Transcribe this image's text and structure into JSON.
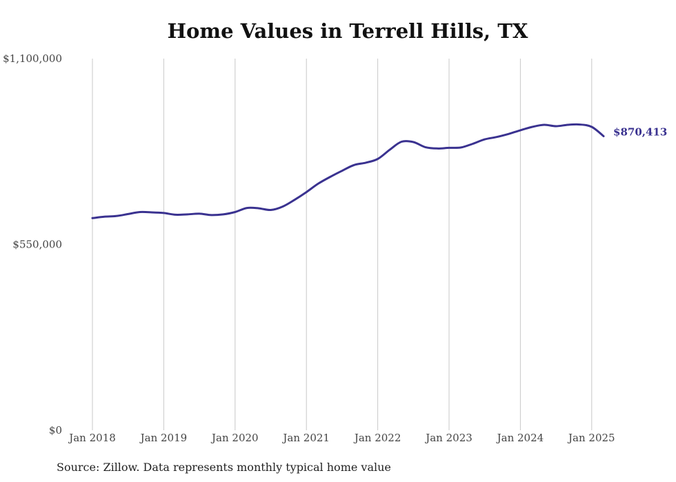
{
  "footer": {
    "source": "Source: Zillow. Data represents monthly typical home value"
  },
  "chart_data": {
    "type": "line",
    "title": "Home Values in Terrell Hills, TX",
    "xlabel": "",
    "ylabel": "",
    "ylim": [
      0,
      1100000
    ],
    "y_ticks": [
      0,
      550000,
      1100000
    ],
    "y_tick_labels": [
      "$0",
      "$550,000",
      "$1,100,000"
    ],
    "x_ticks": [
      "2018-01",
      "2019-01",
      "2020-01",
      "2021-01",
      "2022-01",
      "2023-01",
      "2024-01",
      "2025-01"
    ],
    "x_tick_labels": [
      "Jan 2018",
      "Jan 2019",
      "Jan 2020",
      "Jan 2021",
      "Jan 2022",
      "Jan 2023",
      "Jan 2024",
      "Jan 2025"
    ],
    "grid": "vertical",
    "line_color": "#3a3290",
    "grid_color": "#c8c8c8",
    "end_label": "$870,413",
    "series": [
      {
        "x": [
          "2018-01",
          "2018-03",
          "2018-05",
          "2018-07",
          "2018-09",
          "2018-11",
          "2019-01",
          "2019-03",
          "2019-05",
          "2019-07",
          "2019-09",
          "2019-11",
          "2020-01",
          "2020-03",
          "2020-05",
          "2020-07",
          "2020-09",
          "2020-11",
          "2021-01",
          "2021-03",
          "2021-05",
          "2021-07",
          "2021-09",
          "2021-11",
          "2022-01",
          "2022-03",
          "2022-05",
          "2022-07",
          "2022-09",
          "2022-11",
          "2023-01",
          "2023-03",
          "2023-05",
          "2023-07",
          "2023-09",
          "2023-11",
          "2024-01",
          "2024-03",
          "2024-05",
          "2024-07",
          "2024-09",
          "2024-11",
          "2025-01",
          "2025-03"
        ],
        "values": [
          628000,
          632000,
          634000,
          640000,
          646000,
          645000,
          643000,
          638000,
          639000,
          641000,
          637000,
          639000,
          646000,
          658000,
          657000,
          652000,
          662000,
          682000,
          705000,
          730000,
          750000,
          768000,
          785000,
          792000,
          803000,
          830000,
          854000,
          853000,
          838000,
          834000,
          836000,
          837000,
          848000,
          861000,
          868000,
          877000,
          888000,
          898000,
          904000,
          900000,
          904000,
          905000,
          898000,
          870413
        ]
      }
    ]
  }
}
